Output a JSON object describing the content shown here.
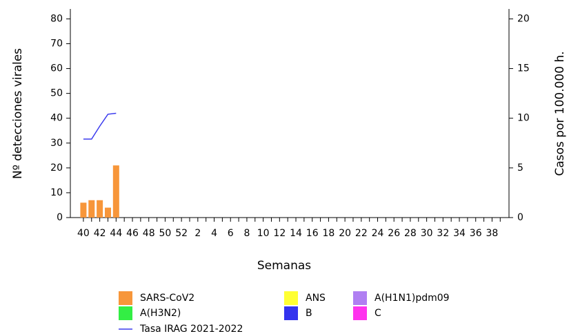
{
  "chart_data": {
    "type": "bar",
    "x_label": "Semanas",
    "y_label": "Nº detecciones virales",
    "y2_label": "Casos por 100.000 h.",
    "categories": [
      "40",
      null,
      "42",
      null,
      "44",
      null,
      "46",
      null,
      "48",
      null,
      "50",
      null,
      "52",
      null,
      "2",
      null,
      "4",
      null,
      "6",
      null,
      "8",
      null,
      "10",
      null,
      "12",
      null,
      "14",
      null,
      "16",
      null,
      "18",
      null,
      "20",
      null,
      "22",
      null,
      "24",
      null,
      "26",
      null,
      "28",
      null,
      "30",
      null,
      "32",
      null,
      "34",
      null,
      "36",
      null,
      "38",
      null
    ],
    "ylim": [
      0,
      84
    ],
    "yticks": [
      0,
      10,
      20,
      30,
      40,
      50,
      60,
      70,
      80
    ],
    "y2lim": [
      0,
      21
    ],
    "y2ticks": [
      0,
      5,
      10,
      15,
      20
    ],
    "series": [
      {
        "name": "SARS-CoV2",
        "color": "#f7963a",
        "values": [
          6,
          7,
          7,
          4,
          21,
          null,
          null,
          null,
          null,
          null,
          null,
          null,
          null,
          null,
          null,
          null,
          null,
          null,
          null,
          null,
          null,
          null,
          null,
          null,
          null,
          null,
          null,
          null,
          null,
          null,
          null,
          null,
          null,
          null,
          null,
          null,
          null,
          null,
          null,
          null,
          null,
          null,
          null,
          null,
          null,
          null,
          null,
          null,
          null,
          null,
          null,
          null
        ]
      },
      {
        "name": "ANS",
        "color": "#ffff33",
        "values": [
          null,
          null,
          null,
          null,
          null,
          null,
          null,
          null,
          null,
          null,
          null,
          null,
          null,
          null,
          null,
          null,
          null,
          null,
          null,
          null,
          null,
          null,
          null,
          null,
          null,
          null,
          null,
          null,
          null,
          null,
          null,
          null,
          null,
          null,
          null,
          null,
          null,
          null,
          null,
          null,
          null,
          null,
          null,
          null,
          null,
          null,
          null,
          null,
          null,
          null,
          null,
          null
        ]
      },
      {
        "name": "A(H1N1)pdm09",
        "color": "#b07ff2",
        "values": [
          null,
          null,
          null,
          null,
          null,
          null,
          null,
          null,
          null,
          null,
          null,
          null,
          null,
          null,
          null,
          null,
          null,
          null,
          null,
          null,
          null,
          null,
          null,
          null,
          null,
          null,
          null,
          null,
          null,
          null,
          null,
          null,
          null,
          null,
          null,
          null,
          null,
          null,
          null,
          null,
          null,
          null,
          null,
          null,
          null,
          null,
          null,
          null,
          null,
          null,
          null,
          null
        ]
      },
      {
        "name": "A(H3N2)",
        "color": "#33ee44",
        "values": [
          null,
          null,
          null,
          null,
          null,
          null,
          null,
          null,
          null,
          null,
          null,
          null,
          null,
          null,
          null,
          null,
          null,
          null,
          null,
          null,
          null,
          null,
          null,
          null,
          null,
          null,
          null,
          null,
          null,
          null,
          null,
          null,
          null,
          null,
          null,
          null,
          null,
          null,
          null,
          null,
          null,
          null,
          null,
          null,
          null,
          null,
          null,
          null,
          null,
          null,
          null,
          null
        ]
      },
      {
        "name": "B",
        "color": "#3333ee",
        "values": [
          null,
          null,
          null,
          null,
          null,
          null,
          null,
          null,
          null,
          null,
          null,
          null,
          null,
          null,
          null,
          null,
          null,
          null,
          null,
          null,
          null,
          null,
          null,
          null,
          null,
          null,
          null,
          null,
          null,
          null,
          null,
          null,
          null,
          null,
          null,
          null,
          null,
          null,
          null,
          null,
          null,
          null,
          null,
          null,
          null,
          null,
          null,
          null,
          null,
          null,
          null,
          null
        ]
      },
      {
        "name": "C",
        "color": "#ff33ee",
        "values": [
          null,
          null,
          null,
          null,
          null,
          null,
          null,
          null,
          null,
          null,
          null,
          null,
          null,
          null,
          null,
          null,
          null,
          null,
          null,
          null,
          null,
          null,
          null,
          null,
          null,
          null,
          null,
          null,
          null,
          null,
          null,
          null,
          null,
          null,
          null,
          null,
          null,
          null,
          null,
          null,
          null,
          null,
          null,
          null,
          null,
          null,
          null,
          null,
          null,
          null,
          null,
          null
        ]
      },
      {
        "name": "Tasa IRAG 2021-2022",
        "color": "#3a3aee",
        "type": "line",
        "axis": "y2",
        "values": [
          7.9,
          7.9,
          9.2,
          10.4,
          10.5,
          null,
          null,
          null,
          null,
          null,
          null,
          null,
          null,
          null,
          null,
          null,
          null,
          null,
          null,
          null,
          null,
          null,
          null,
          null,
          null,
          null,
          null,
          null,
          null,
          null,
          null,
          null,
          null,
          null,
          null,
          null,
          null,
          null,
          null,
          null,
          null,
          null,
          null,
          null,
          null,
          null,
          null,
          null,
          null,
          null,
          null,
          null
        ]
      }
    ]
  }
}
